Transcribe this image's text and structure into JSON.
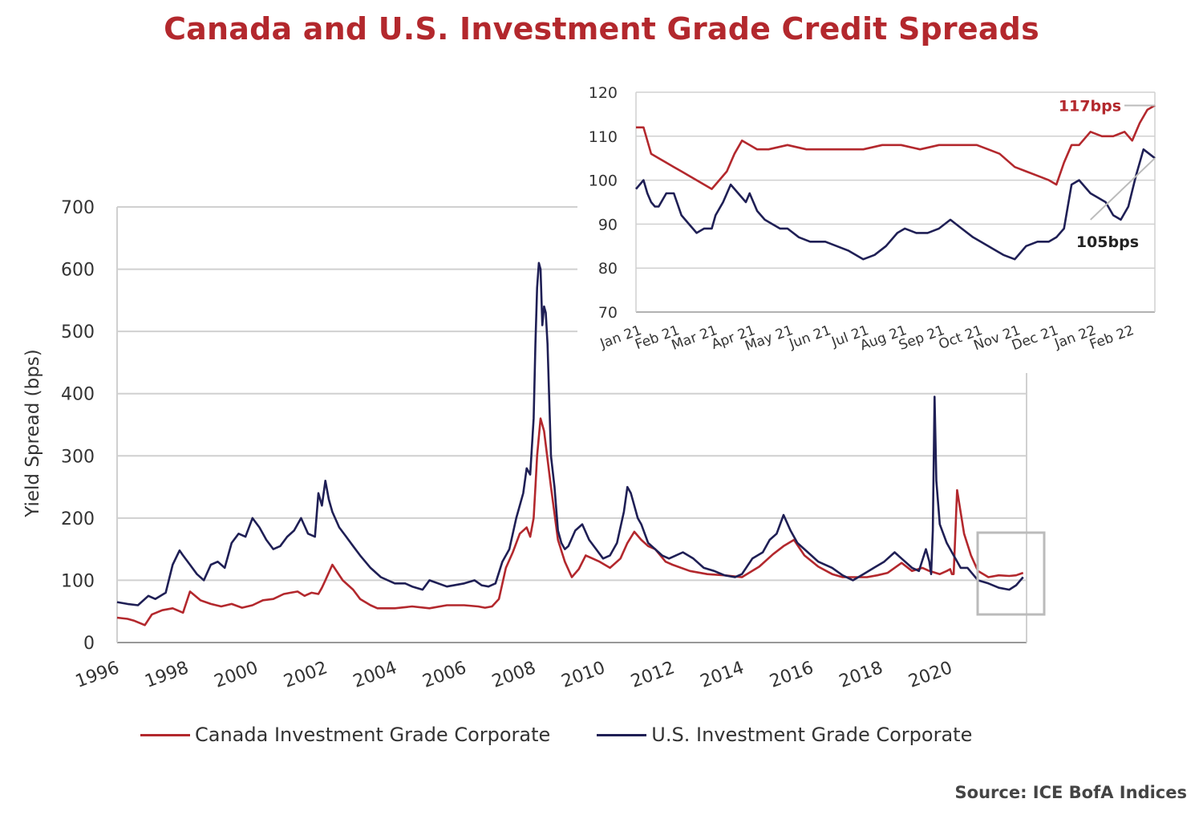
{
  "title": "Canada and U.S. Investment Grade Credit Spreads",
  "source": "Source: ICE BofA Indices",
  "colors": {
    "canada": "#b3282d",
    "us": "#1f1f55",
    "grid": "#d0d0d0",
    "axis": "#999999",
    "callout": "#bbbbbb"
  },
  "legend": {
    "canada": "Canada Investment Grade Corporate",
    "us": "U.S. Investment Grade Corporate"
  },
  "chart_data": [
    {
      "type": "line",
      "title": "Canada and U.S. Investment Grade Credit Spreads",
      "ylabel": "Yield Spread (bps)",
      "xlabel": "",
      "xlim": [
        1996,
        2022.2
      ],
      "ylim": [
        0,
        700
      ],
      "y_ticks": [
        0,
        100,
        200,
        300,
        400,
        500,
        600,
        700
      ],
      "x_ticks": [
        "1996",
        "1998",
        "2000",
        "2002",
        "2004",
        "2006",
        "2008",
        "2010",
        "2012",
        "2014",
        "2016",
        "2018",
        "2020"
      ],
      "grid": "horizontal",
      "legend_position": "bottom",
      "series": [
        {
          "name": "Canada Investment Grade Corporate",
          "x": [
            1996.0,
            1996.3,
            1996.5,
            1996.8,
            1997.0,
            1997.3,
            1997.6,
            1997.9,
            1998.1,
            1998.4,
            1998.7,
            1999.0,
            1999.3,
            1999.6,
            1999.9,
            2000.2,
            2000.5,
            2000.8,
            2001.0,
            2001.2,
            2001.4,
            2001.6,
            2001.8,
            2001.9,
            2002.0,
            2002.2,
            2002.5,
            2002.8,
            2003.0,
            2003.3,
            2003.5,
            2004.0,
            2004.5,
            2005.0,
            2005.5,
            2006.0,
            2006.4,
            2006.6,
            2006.8,
            2007.0,
            2007.2,
            2007.4,
            2007.6,
            2007.8,
            2007.9,
            2008.0,
            2008.05,
            2008.1,
            2008.2,
            2008.3,
            2008.5,
            2008.7,
            2008.9,
            2009.1,
            2009.3,
            2009.5,
            2009.7,
            2009.9,
            2010.2,
            2010.5,
            2010.7,
            2010.9,
            2011.1,
            2011.3,
            2011.5,
            2011.8,
            2012.0,
            2012.5,
            2013.0,
            2013.5,
            2014.0,
            2014.5,
            2014.9,
            2015.2,
            2015.5,
            2015.8,
            2016.2,
            2016.6,
            2016.9,
            2017.2,
            2017.6,
            2017.9,
            2018.2,
            2018.6,
            2018.9,
            2019.2,
            2019.4,
            2019.7,
            2019.9,
            2020.0,
            2020.05,
            2020.1,
            2020.2,
            2020.4,
            2020.6,
            2020.8,
            2021.1,
            2021.4,
            2021.7,
            2021.9,
            2022.1
          ],
          "values": [
            40,
            38,
            35,
            28,
            45,
            52,
            55,
            48,
            82,
            68,
            62,
            58,
            62,
            56,
            60,
            68,
            70,
            78,
            80,
            82,
            75,
            80,
            78,
            88,
            100,
            125,
            100,
            85,
            70,
            60,
            55,
            55,
            58,
            55,
            60,
            60,
            58,
            56,
            58,
            70,
            120,
            145,
            175,
            185,
            170,
            200,
            250,
            300,
            360,
            340,
            250,
            165,
            130,
            105,
            118,
            140,
            135,
            130,
            120,
            135,
            160,
            178,
            165,
            155,
            150,
            130,
            125,
            115,
            110,
            108,
            105,
            122,
            142,
            155,
            165,
            140,
            122,
            110,
            105,
            105,
            105,
            108,
            112,
            128,
            115,
            120,
            115,
            110,
            115,
            118,
            110,
            110,
            245,
            175,
            140,
            115,
            105,
            108,
            107,
            108,
            112
          ]
        },
        {
          "name": "U.S. Investment Grade Corporate",
          "x": [
            1996.0,
            1996.3,
            1996.6,
            1996.9,
            1997.1,
            1997.4,
            1997.6,
            1997.8,
            1997.9,
            1998.1,
            1998.3,
            1998.5,
            1998.7,
            1998.9,
            1999.1,
            1999.3,
            1999.5,
            1999.7,
            1999.9,
            2000.1,
            2000.3,
            2000.5,
            2000.7,
            2000.9,
            2001.1,
            2001.3,
            2001.5,
            2001.7,
            2001.8,
            2001.9,
            2002.0,
            2002.1,
            2002.2,
            2002.4,
            2002.6,
            2002.8,
            2003.0,
            2003.3,
            2003.6,
            2004.0,
            2004.3,
            2004.5,
            2004.8,
            2005.0,
            2005.5,
            2006.0,
            2006.3,
            2006.5,
            2006.7,
            2006.9,
            2007.1,
            2007.3,
            2007.5,
            2007.7,
            2007.8,
            2007.9,
            2008.0,
            2008.05,
            2008.1,
            2008.15,
            2008.2,
            2008.25,
            2008.3,
            2008.35,
            2008.4,
            2008.5,
            2008.6,
            2008.7,
            2008.8,
            2008.9,
            2009.0,
            2009.2,
            2009.4,
            2009.6,
            2009.8,
            2010.0,
            2010.2,
            2010.4,
            2010.6,
            2010.7,
            2010.8,
            2010.9,
            2011.0,
            2011.1,
            2011.3,
            2011.5,
            2011.7,
            2011.9,
            2012.1,
            2012.3,
            2012.6,
            2012.9,
            2013.2,
            2013.5,
            2013.8,
            2014.0,
            2014.3,
            2014.6,
            2014.8,
            2015.0,
            2015.2,
            2015.4,
            2015.6,
            2015.9,
            2016.2,
            2016.6,
            2016.9,
            2017.2,
            2017.5,
            2017.8,
            2018.1,
            2018.4,
            2018.6,
            2018.9,
            2019.1,
            2019.3,
            2019.4,
            2019.45,
            2019.5,
            2019.55,
            2019.6,
            2019.7,
            2019.9,
            2020.1,
            2020.3,
            2020.5,
            2020.8,
            2021.1,
            2021.4,
            2021.7,
            2021.9,
            2022.1
          ],
          "values": [
            65,
            62,
            60,
            75,
            70,
            80,
            125,
            148,
            140,
            125,
            110,
            100,
            125,
            130,
            120,
            160,
            175,
            170,
            200,
            185,
            165,
            150,
            155,
            170,
            180,
            200,
            175,
            170,
            240,
            220,
            260,
            230,
            210,
            185,
            170,
            155,
            140,
            120,
            105,
            95,
            95,
            90,
            85,
            100,
            90,
            95,
            100,
            92,
            90,
            95,
            130,
            150,
            200,
            240,
            280,
            270,
            360,
            480,
            570,
            610,
            600,
            510,
            540,
            530,
            480,
            300,
            250,
            180,
            160,
            150,
            155,
            180,
            190,
            165,
            150,
            135,
            140,
            160,
            210,
            250,
            240,
            220,
            200,
            190,
            160,
            150,
            140,
            135,
            140,
            145,
            135,
            120,
            115,
            108,
            105,
            110,
            135,
            145,
            165,
            175,
            205,
            180,
            160,
            145,
            130,
            120,
            108,
            100,
            110,
            120,
            130,
            145,
            135,
            120,
            115,
            150,
            130,
            110,
            180,
            395,
            260,
            190,
            160,
            140,
            120,
            120,
            100,
            95,
            88,
            85,
            92,
            105
          ]
        }
      ]
    },
    {
      "type": "line",
      "title": "",
      "xlabel": "",
      "ylabel": "",
      "x_ticks": [
        "Jan 21",
        "Feb 21",
        "Mar 21",
        "Apr 21",
        "May 21",
        "Jun 21",
        "Jul 21",
        "Aug 21",
        "Sep 21",
        "Oct 21",
        "Nov 21",
        "Dec 21",
        "Jan 22",
        "Feb 22"
      ],
      "ylim": [
        70,
        120
      ],
      "y_ticks": [
        70,
        80,
        90,
        100,
        110,
        120
      ],
      "grid": "horizontal",
      "annotations": [
        {
          "label": "117bps",
          "series": "Canada Investment Grade Corporate",
          "value": 117
        },
        {
          "label": "105bps",
          "series": "U.S. Investment Grade Corporate",
          "value": 105
        }
      ],
      "series": [
        {
          "name": "Canada Investment Grade Corporate",
          "x": [
            0,
            0.2,
            0.4,
            0.6,
            0.8,
            1.0,
            1.2,
            1.4,
            1.6,
            1.8,
            2.0,
            2.1,
            2.2,
            2.4,
            2.6,
            2.8,
            3.0,
            3.2,
            3.5,
            4.0,
            4.5,
            5.0,
            5.5,
            6.0,
            6.5,
            7.0,
            7.5,
            8.0,
            8.5,
            9.0,
            9.3,
            9.6,
            10.0,
            10.3,
            10.6,
            10.9,
            11.1,
            11.3,
            11.5,
            11.7,
            12.0,
            12.3,
            12.6,
            12.9,
            13.1,
            13.3,
            13.5,
            13.7
          ],
          "values": [
            112,
            112,
            106,
            105,
            104,
            103,
            102,
            101,
            100,
            99,
            98,
            99,
            100,
            102,
            106,
            109,
            108,
            107,
            107,
            108,
            107,
            107,
            107,
            107,
            108,
            108,
            107,
            108,
            108,
            108,
            107,
            106,
            103,
            102,
            101,
            100,
            99,
            104,
            108,
            108,
            111,
            110,
            110,
            111,
            109,
            113,
            116,
            117
          ]
        },
        {
          "name": "U.S. Investment Grade Corporate",
          "x": [
            0,
            0.1,
            0.2,
            0.3,
            0.4,
            0.5,
            0.6,
            0.8,
            1.0,
            1.2,
            1.4,
            1.6,
            1.8,
            2.0,
            2.1,
            2.3,
            2.5,
            2.7,
            2.9,
            3.0,
            3.2,
            3.4,
            3.6,
            3.8,
            4.0,
            4.3,
            4.6,
            5.0,
            5.3,
            5.6,
            6.0,
            6.3,
            6.6,
            6.9,
            7.1,
            7.4,
            7.7,
            8.0,
            8.3,
            8.6,
            8.9,
            9.1,
            9.3,
            9.5,
            9.7,
            10.0,
            10.3,
            10.6,
            10.9,
            11.1,
            11.3,
            11.5,
            11.7,
            12.0,
            12.2,
            12.4,
            12.6,
            12.8,
            13.0,
            13.2,
            13.4,
            13.7
          ],
          "values": [
            98,
            99,
            100,
            97,
            95,
            94,
            94,
            97,
            97,
            92,
            90,
            88,
            89,
            89,
            92,
            95,
            99,
            97,
            95,
            97,
            93,
            91,
            90,
            89,
            89,
            87,
            86,
            86,
            85,
            84,
            82,
            83,
            85,
            88,
            89,
            88,
            88,
            89,
            91,
            89,
            87,
            86,
            85,
            84,
            83,
            82,
            85,
            86,
            86,
            87,
            89,
            99,
            100,
            97,
            96,
            95,
            92,
            91,
            94,
            101,
            107,
            105
          ]
        }
      ]
    }
  ]
}
